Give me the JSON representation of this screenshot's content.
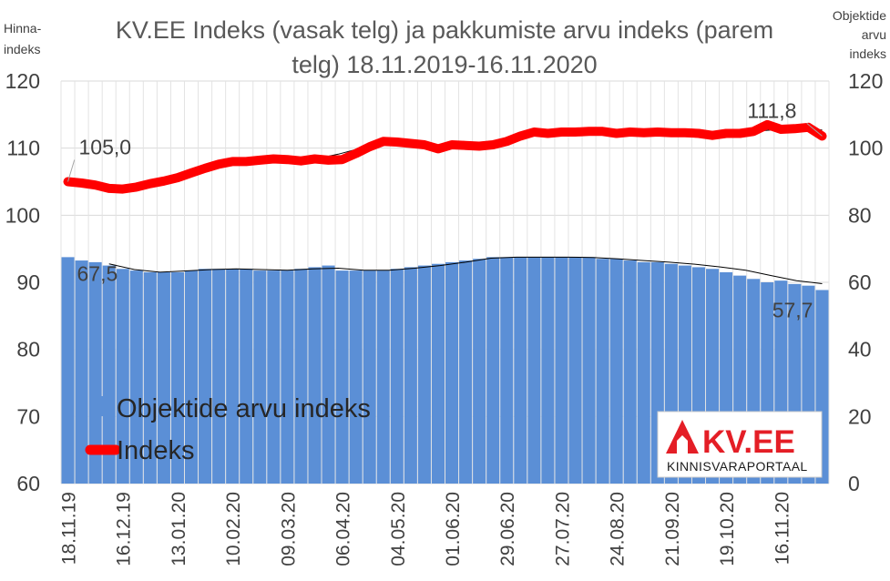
{
  "chart_data": {
    "type": "bar",
    "title": "KV.EE Indeks (vasak telg) ja pakkumiste arvu indeks (parem telg) 18.11.2019-16.11.2020",
    "title_lines": [
      "KV.EE Indeks (vasak telg) ja pakkumiste arvu indeks (parem",
      "telg) 18.11.2019-16.11.2020"
    ],
    "left_axis_label_lines": [
      "Hinna-",
      "indeks"
    ],
    "right_axis_label_lines": [
      "Objektide",
      "arvu",
      "indeks"
    ],
    "left_axis": {
      "ylim": [
        60,
        120
      ],
      "ticks": [
        "60",
        "70",
        "80",
        "90",
        "100",
        "110",
        "120"
      ]
    },
    "right_axis": {
      "ylim": [
        0,
        120
      ],
      "ticks": [
        "0",
        "20",
        "40",
        "60",
        "80",
        "100",
        "120"
      ]
    },
    "x_tick_labels": [
      "18.11.19",
      "16.12.19",
      "13.01.20",
      "10.02.20",
      "09.03.20",
      "06.04.20",
      "04.05.20",
      "01.06.20",
      "29.06.20",
      "27.07.20",
      "24.08.20",
      "21.09.20",
      "19.10.20",
      "16.11.20"
    ],
    "x_tick_step_weeks": 4,
    "grid": true,
    "legend_position": "bottom-left",
    "series": [
      {
        "name": "Objektide arvu indeks",
        "kind": "bar",
        "axis": "right",
        "color": "#5b8fd6",
        "values": [
          67.5,
          66.5,
          66.0,
          65.0,
          64.0,
          63.5,
          63.0,
          63.0,
          63.0,
          63.5,
          64.0,
          64.0,
          64.0,
          64.0,
          63.5,
          63.5,
          63.5,
          64.0,
          64.5,
          65.0,
          63.5,
          63.5,
          63.5,
          63.5,
          64.0,
          64.5,
          65.0,
          65.5,
          66.0,
          66.5,
          67.0,
          67.5,
          67.5,
          67.5,
          67.5,
          67.5,
          67.5,
          67.5,
          67.5,
          67.0,
          67.0,
          66.5,
          66.0,
          66.0,
          65.5,
          65.0,
          64.5,
          64.0,
          63.0,
          62.0,
          61.0,
          60.0,
          60.5,
          59.5,
          59.0,
          57.7
        ]
      },
      {
        "name": "Indeks",
        "kind": "line",
        "axis": "left",
        "color": "#ff0000",
        "values": [
          105.0,
          104.8,
          104.5,
          104.0,
          103.9,
          104.2,
          104.7,
          105.1,
          105.6,
          106.3,
          107.0,
          107.6,
          108.0,
          108.0,
          108.2,
          108.4,
          108.3,
          108.1,
          108.4,
          108.2,
          108.3,
          109.2,
          110.2,
          111.0,
          110.9,
          110.7,
          110.5,
          109.9,
          110.5,
          110.4,
          110.3,
          110.5,
          111.0,
          111.8,
          112.4,
          112.2,
          112.4,
          112.4,
          112.5,
          112.5,
          112.2,
          112.4,
          112.3,
          112.4,
          112.3,
          112.3,
          112.2,
          111.9,
          112.2,
          112.2,
          112.5,
          113.5,
          112.8,
          112.9,
          113.1,
          111.8
        ]
      }
    ],
    "trendlines": [
      {
        "color": "#000000",
        "axis": "left",
        "values": [
          104.0,
          104.4,
          105.2,
          106.2,
          107.3,
          107.9,
          108.1,
          108.2,
          108.3,
          109.1,
          110.1,
          110.6,
          110.5,
          110.4,
          110.4,
          110.9,
          111.7,
          112.0,
          112.2,
          112.4,
          112.3,
          112.3,
          112.3,
          112.3,
          112.2,
          112.4,
          112.7,
          113.0,
          112.7
        ]
      },
      {
        "color": "#000000",
        "axis": "right",
        "values": [
          65.5,
          63.8,
          63.0,
          63.4,
          63.8,
          64.0,
          63.8,
          63.6,
          64.0,
          64.2,
          63.6,
          63.6,
          64.2,
          65.0,
          66.0,
          67.2,
          67.5,
          67.5,
          67.5,
          67.4,
          67.0,
          66.5,
          66.0,
          65.4,
          64.6,
          63.6,
          62.0,
          60.5,
          59.6
        ]
      }
    ],
    "data_labels": [
      {
        "text": "105,0",
        "series": "Indeks",
        "index": 0
      },
      {
        "text": "111,8",
        "series": "Indeks",
        "index": 55
      },
      {
        "text": "67,5",
        "series": "Objektide arvu indeks",
        "index": 0
      },
      {
        "text": "57,7",
        "series": "Objektide arvu indeks",
        "index": 55
      }
    ]
  },
  "logo": {
    "brand": "KV.EE",
    "subtitle": "KINNISVARAPORTAAL",
    "brand_color": "#e41e26"
  }
}
